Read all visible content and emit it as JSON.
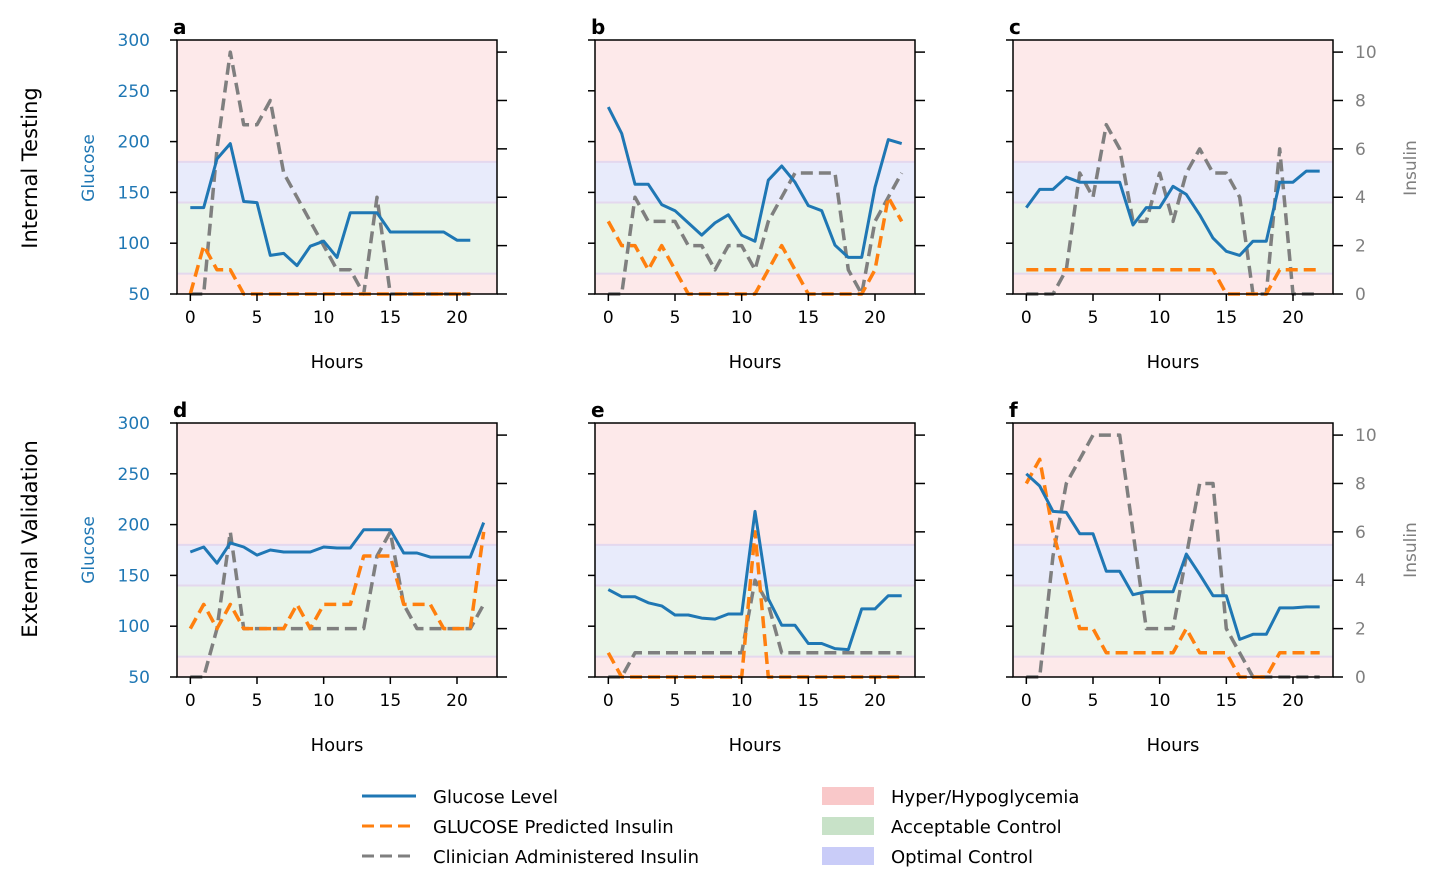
{
  "figure": {
    "row_labels": [
      "Internal Testing",
      "External Validation"
    ],
    "left_axis_label": "Glucose",
    "right_axis_label": "Insulin",
    "x_axis_label": "Hours",
    "legend": {
      "glucose": "Glucose Level",
      "predicted": "GLUCOSE Predicted Insulin",
      "clinician": "Clinician Administered Insulin",
      "hyper": "Hyper/Hypoglycemia",
      "acceptable": "Acceptable Control",
      "optimal": "Optimal Control"
    },
    "colors": {
      "glucose": "#1f77b4",
      "predicted": "#ff7f0e",
      "clinician": "#7f7f7f",
      "hyper_band": "#fde9ea",
      "acceptable_band": "#e9f4e8",
      "optimal_band": "#e8ebfb",
      "left_axis": "#1f77b4",
      "right_axis": "#7f7f7f"
    }
  },
  "chart_data": [
    {
      "panel": "a",
      "type": "line",
      "xlim": [
        -1,
        23
      ],
      "ylim_left": [
        50,
        300
      ],
      "ylim_right": [
        0,
        10.5
      ],
      "glucose_ticks": [
        50,
        100,
        150,
        200,
        250,
        300
      ],
      "insulin_ticks": [
        0,
        2,
        4,
        6,
        8,
        10
      ],
      "x_ticks": [
        0,
        5,
        10,
        15,
        20
      ],
      "bands": {
        "hyper_low": [
          50,
          70
        ],
        "acceptable": [
          70,
          140
        ],
        "optimal": [
          140,
          180
        ],
        "hyper_high": [
          180,
          300
        ]
      },
      "glucose": {
        "x": [
          0,
          1,
          2,
          3,
          4,
          5,
          6,
          7,
          8,
          9,
          10,
          11,
          12,
          13,
          14,
          15,
          16,
          17,
          18,
          19,
          20,
          21
        ],
        "y": [
          135,
          135,
          183,
          198,
          141,
          140,
          88,
          90,
          78,
          97,
          102,
          86,
          130,
          130,
          130,
          111,
          111,
          111,
          111,
          111,
          103,
          103
        ]
      },
      "predicted": {
        "x": [
          0,
          1,
          2,
          3,
          4,
          5,
          6,
          7,
          8,
          9,
          10,
          11,
          12,
          13,
          14,
          15,
          16,
          17,
          18,
          19,
          20,
          21
        ],
        "y": [
          0,
          2,
          1,
          1,
          0,
          0,
          0,
          0,
          0,
          0,
          0,
          0,
          0,
          0,
          0,
          0,
          0,
          0,
          0,
          0,
          0,
          0
        ]
      },
      "clinician": {
        "x": [
          0,
          1,
          2,
          3,
          4,
          5,
          6,
          7,
          8,
          9,
          10,
          11,
          12,
          13,
          14,
          15,
          16,
          17,
          18,
          19,
          20,
          21
        ],
        "y": [
          0,
          0,
          6,
          10,
          7,
          7,
          8,
          5,
          4,
          3,
          2,
          1,
          1,
          0,
          4,
          0,
          0,
          0,
          0,
          0,
          0,
          0
        ]
      }
    },
    {
      "panel": "b",
      "type": "line",
      "xlim": [
        -1,
        23
      ],
      "ylim_left": [
        50,
        300
      ],
      "ylim_right": [
        0,
        10.5
      ],
      "glucose_ticks": [
        50,
        100,
        150,
        200,
        250,
        300
      ],
      "insulin_ticks": [
        0,
        2,
        4,
        6,
        8,
        10
      ],
      "x_ticks": [
        0,
        5,
        10,
        15,
        20
      ],
      "bands": {
        "hyper_low": [
          50,
          70
        ],
        "acceptable": [
          70,
          140
        ],
        "optimal": [
          140,
          180
        ],
        "hyper_high": [
          180,
          300
        ]
      },
      "glucose": {
        "x": [
          0,
          1,
          2,
          3,
          4,
          5,
          6,
          7,
          8,
          9,
          10,
          11,
          12,
          13,
          14,
          15,
          16,
          17,
          18,
          19,
          20,
          21,
          22
        ],
        "y": [
          234,
          208,
          158,
          158,
          138,
          132,
          120,
          108,
          120,
          128,
          108,
          102,
          162,
          176,
          160,
          137,
          132,
          98,
          86,
          86,
          155,
          202,
          198
        ]
      },
      "predicted": {
        "x": [
          0,
          1,
          2,
          3,
          4,
          5,
          6,
          7,
          8,
          9,
          10,
          11,
          12,
          13,
          14,
          15,
          16,
          17,
          18,
          19,
          20,
          21,
          22
        ],
        "y": [
          3,
          2,
          2,
          1,
          2,
          1,
          0,
          0,
          0,
          0,
          0,
          0,
          1,
          2,
          1,
          0,
          0,
          0,
          0,
          0,
          1,
          4,
          3
        ]
      },
      "clinician": {
        "x": [
          0,
          1,
          2,
          3,
          4,
          5,
          6,
          7,
          8,
          9,
          10,
          11,
          12,
          13,
          14,
          15,
          16,
          17,
          18,
          19,
          20,
          21,
          22
        ],
        "y": [
          0,
          0,
          4,
          3,
          3,
          3,
          2,
          2,
          1,
          2,
          2,
          1,
          3,
          4,
          5,
          5,
          5,
          5,
          1,
          0,
          3,
          4,
          5
        ]
      }
    },
    {
      "panel": "c",
      "type": "line",
      "xlim": [
        -1,
        23
      ],
      "ylim_left": [
        50,
        300
      ],
      "ylim_right": [
        0,
        10.5
      ],
      "glucose_ticks": [
        50,
        100,
        150,
        200,
        250,
        300
      ],
      "insulin_ticks": [
        0,
        2,
        4,
        6,
        8,
        10
      ],
      "x_ticks": [
        0,
        5,
        10,
        15,
        20
      ],
      "bands": {
        "hyper_low": [
          50,
          70
        ],
        "acceptable": [
          70,
          140
        ],
        "optimal": [
          140,
          180
        ],
        "hyper_high": [
          180,
          300
        ]
      },
      "glucose": {
        "x": [
          0,
          1,
          2,
          3,
          4,
          5,
          6,
          7,
          8,
          9,
          10,
          11,
          12,
          13,
          14,
          15,
          16,
          17,
          18,
          19,
          20,
          21,
          22
        ],
        "y": [
          135,
          153,
          153,
          165,
          160,
          160,
          160,
          160,
          118,
          135,
          135,
          156,
          148,
          128,
          105,
          92,
          88,
          102,
          102,
          160,
          160,
          171,
          171
        ]
      },
      "predicted": {
        "x": [
          0,
          1,
          2,
          3,
          4,
          5,
          6,
          7,
          8,
          9,
          10,
          11,
          12,
          13,
          14,
          15,
          16,
          17,
          18,
          19,
          20,
          21,
          22
        ],
        "y": [
          1,
          1,
          1,
          1,
          1,
          1,
          1,
          1,
          1,
          1,
          1,
          1,
          1,
          1,
          1,
          0,
          0,
          0,
          0,
          1,
          1,
          1,
          1
        ]
      },
      "clinician": {
        "x": [
          0,
          1,
          2,
          3,
          4,
          5,
          6,
          7,
          8,
          9,
          10,
          11,
          12,
          13,
          14,
          15,
          16,
          17,
          18,
          19,
          20,
          21,
          22
        ],
        "y": [
          0,
          0,
          0,
          1,
          5,
          4,
          7,
          6,
          3,
          3,
          5,
          3,
          5,
          6,
          5,
          5,
          4,
          0,
          0,
          6,
          0,
          0,
          0
        ]
      }
    },
    {
      "panel": "d",
      "type": "line",
      "xlim": [
        -1,
        23
      ],
      "ylim_left": [
        50,
        300
      ],
      "ylim_right": [
        0,
        10.5
      ],
      "glucose_ticks": [
        50,
        100,
        150,
        200,
        250,
        300
      ],
      "insulin_ticks": [
        0,
        2,
        4,
        6,
        8,
        10
      ],
      "x_ticks": [
        0,
        5,
        10,
        15,
        20
      ],
      "bands": {
        "hyper_low": [
          50,
          70
        ],
        "acceptable": [
          70,
          140
        ],
        "optimal": [
          140,
          180
        ],
        "hyper_high": [
          180,
          300
        ]
      },
      "glucose": {
        "x": [
          0,
          1,
          2,
          3,
          4,
          5,
          6,
          7,
          8,
          9,
          10,
          11,
          12,
          13,
          14,
          15,
          16,
          17,
          18,
          19,
          20,
          21,
          22
        ],
        "y": [
          173,
          178,
          162,
          182,
          178,
          170,
          175,
          173,
          173,
          173,
          178,
          177,
          177,
          195,
          195,
          195,
          172,
          172,
          168,
          168,
          168,
          168,
          202
        ]
      },
      "predicted": {
        "x": [
          0,
          1,
          2,
          3,
          4,
          5,
          6,
          7,
          8,
          9,
          10,
          11,
          12,
          13,
          14,
          15,
          16,
          17,
          18,
          19,
          20,
          21,
          22
        ],
        "y": [
          2,
          3,
          2,
          3,
          2,
          2,
          2,
          2,
          3,
          2,
          3,
          3,
          3,
          5,
          5,
          5,
          3,
          3,
          3,
          2,
          2,
          2,
          6
        ]
      },
      "clinician": {
        "x": [
          0,
          1,
          2,
          3,
          4,
          5,
          6,
          7,
          8,
          9,
          10,
          11,
          12,
          13,
          14,
          15,
          16,
          17,
          18,
          19,
          20,
          21,
          22
        ],
        "y": [
          0,
          0,
          2,
          6,
          2,
          2,
          2,
          2,
          2,
          2,
          2,
          2,
          2,
          2,
          5,
          6,
          3,
          2,
          2,
          2,
          2,
          2,
          3
        ]
      }
    },
    {
      "panel": "e",
      "type": "line",
      "xlim": [
        -1,
        23
      ],
      "ylim_left": [
        50,
        300
      ],
      "ylim_right": [
        0,
        10.5
      ],
      "glucose_ticks": [
        50,
        100,
        150,
        200,
        250,
        300
      ],
      "insulin_ticks": [
        0,
        2,
        4,
        6,
        8,
        10
      ],
      "x_ticks": [
        0,
        5,
        10,
        15,
        20
      ],
      "bands": {
        "hyper_low": [
          50,
          70
        ],
        "acceptable": [
          70,
          140
        ],
        "optimal": [
          140,
          180
        ],
        "hyper_high": [
          180,
          300
        ]
      },
      "glucose": {
        "x": [
          0,
          1,
          2,
          3,
          4,
          5,
          6,
          7,
          8,
          9,
          10,
          11,
          12,
          13,
          14,
          15,
          16,
          17,
          18,
          19,
          20,
          21,
          22
        ],
        "y": [
          136,
          129,
          129,
          123,
          120,
          111,
          111,
          108,
          107,
          112,
          112,
          213,
          127,
          101,
          101,
          83,
          83,
          78,
          77,
          117,
          117,
          130,
          130
        ]
      },
      "predicted": {
        "x": [
          0,
          1,
          2,
          3,
          4,
          5,
          6,
          7,
          8,
          9,
          10,
          11,
          12,
          13,
          14,
          15,
          16,
          17,
          18,
          19,
          20,
          21,
          22
        ],
        "y": [
          1,
          0,
          0,
          0,
          0,
          0,
          0,
          0,
          0,
          0,
          0,
          6,
          0,
          0,
          0,
          0,
          0,
          0,
          0,
          0,
          0,
          0,
          0
        ]
      },
      "clinician": {
        "x": [
          0,
          1,
          2,
          3,
          4,
          5,
          6,
          7,
          8,
          9,
          10,
          11,
          12,
          13,
          14,
          15,
          16,
          17,
          18,
          19,
          20,
          21,
          22
        ],
        "y": [
          0,
          0,
          1,
          1,
          1,
          1,
          1,
          1,
          1,
          1,
          1,
          4,
          3,
          1,
          1,
          1,
          1,
          1,
          1,
          1,
          1,
          1,
          1
        ]
      }
    },
    {
      "panel": "f",
      "type": "line",
      "xlim": [
        -1,
        23
      ],
      "ylim_left": [
        50,
        300
      ],
      "ylim_right": [
        0,
        10.5
      ],
      "glucose_ticks": [
        50,
        100,
        150,
        200,
        250,
        300
      ],
      "insulin_ticks": [
        0,
        2,
        4,
        6,
        8,
        10
      ],
      "x_ticks": [
        0,
        5,
        10,
        15,
        20
      ],
      "bands": {
        "hyper_low": [
          50,
          70
        ],
        "acceptable": [
          70,
          140
        ],
        "optimal": [
          140,
          180
        ],
        "hyper_high": [
          180,
          300
        ]
      },
      "glucose": {
        "x": [
          0,
          1,
          2,
          3,
          4,
          5,
          6,
          7,
          8,
          9,
          10,
          11,
          12,
          13,
          14,
          15,
          16,
          17,
          18,
          19,
          20,
          21,
          22
        ],
        "y": [
          250,
          238,
          213,
          212,
          191,
          191,
          154,
          154,
          131,
          134,
          134,
          134,
          171,
          151,
          130,
          130,
          87,
          92,
          92,
          118,
          118,
          119,
          119
        ]
      },
      "predicted": {
        "x": [
          0,
          1,
          2,
          3,
          4,
          5,
          6,
          7,
          8,
          9,
          10,
          11,
          12,
          13,
          14,
          15,
          16,
          17,
          18,
          19,
          20,
          21,
          22
        ],
        "y": [
          8,
          9,
          6,
          4,
          2,
          2,
          1,
          1,
          1,
          1,
          1,
          1,
          2,
          1,
          1,
          1,
          0,
          0,
          0,
          1,
          1,
          1,
          1
        ]
      },
      "clinician": {
        "x": [
          0,
          1,
          2,
          3,
          4,
          5,
          6,
          7,
          8,
          9,
          10,
          11,
          12,
          13,
          14,
          15,
          16,
          17,
          18,
          19,
          20,
          21,
          22
        ],
        "y": [
          0,
          0,
          5,
          8,
          9,
          10,
          10,
          10,
          6,
          2,
          2,
          2,
          5,
          8,
          8,
          2,
          1,
          0,
          0,
          0,
          0,
          0,
          0
        ]
      }
    }
  ]
}
